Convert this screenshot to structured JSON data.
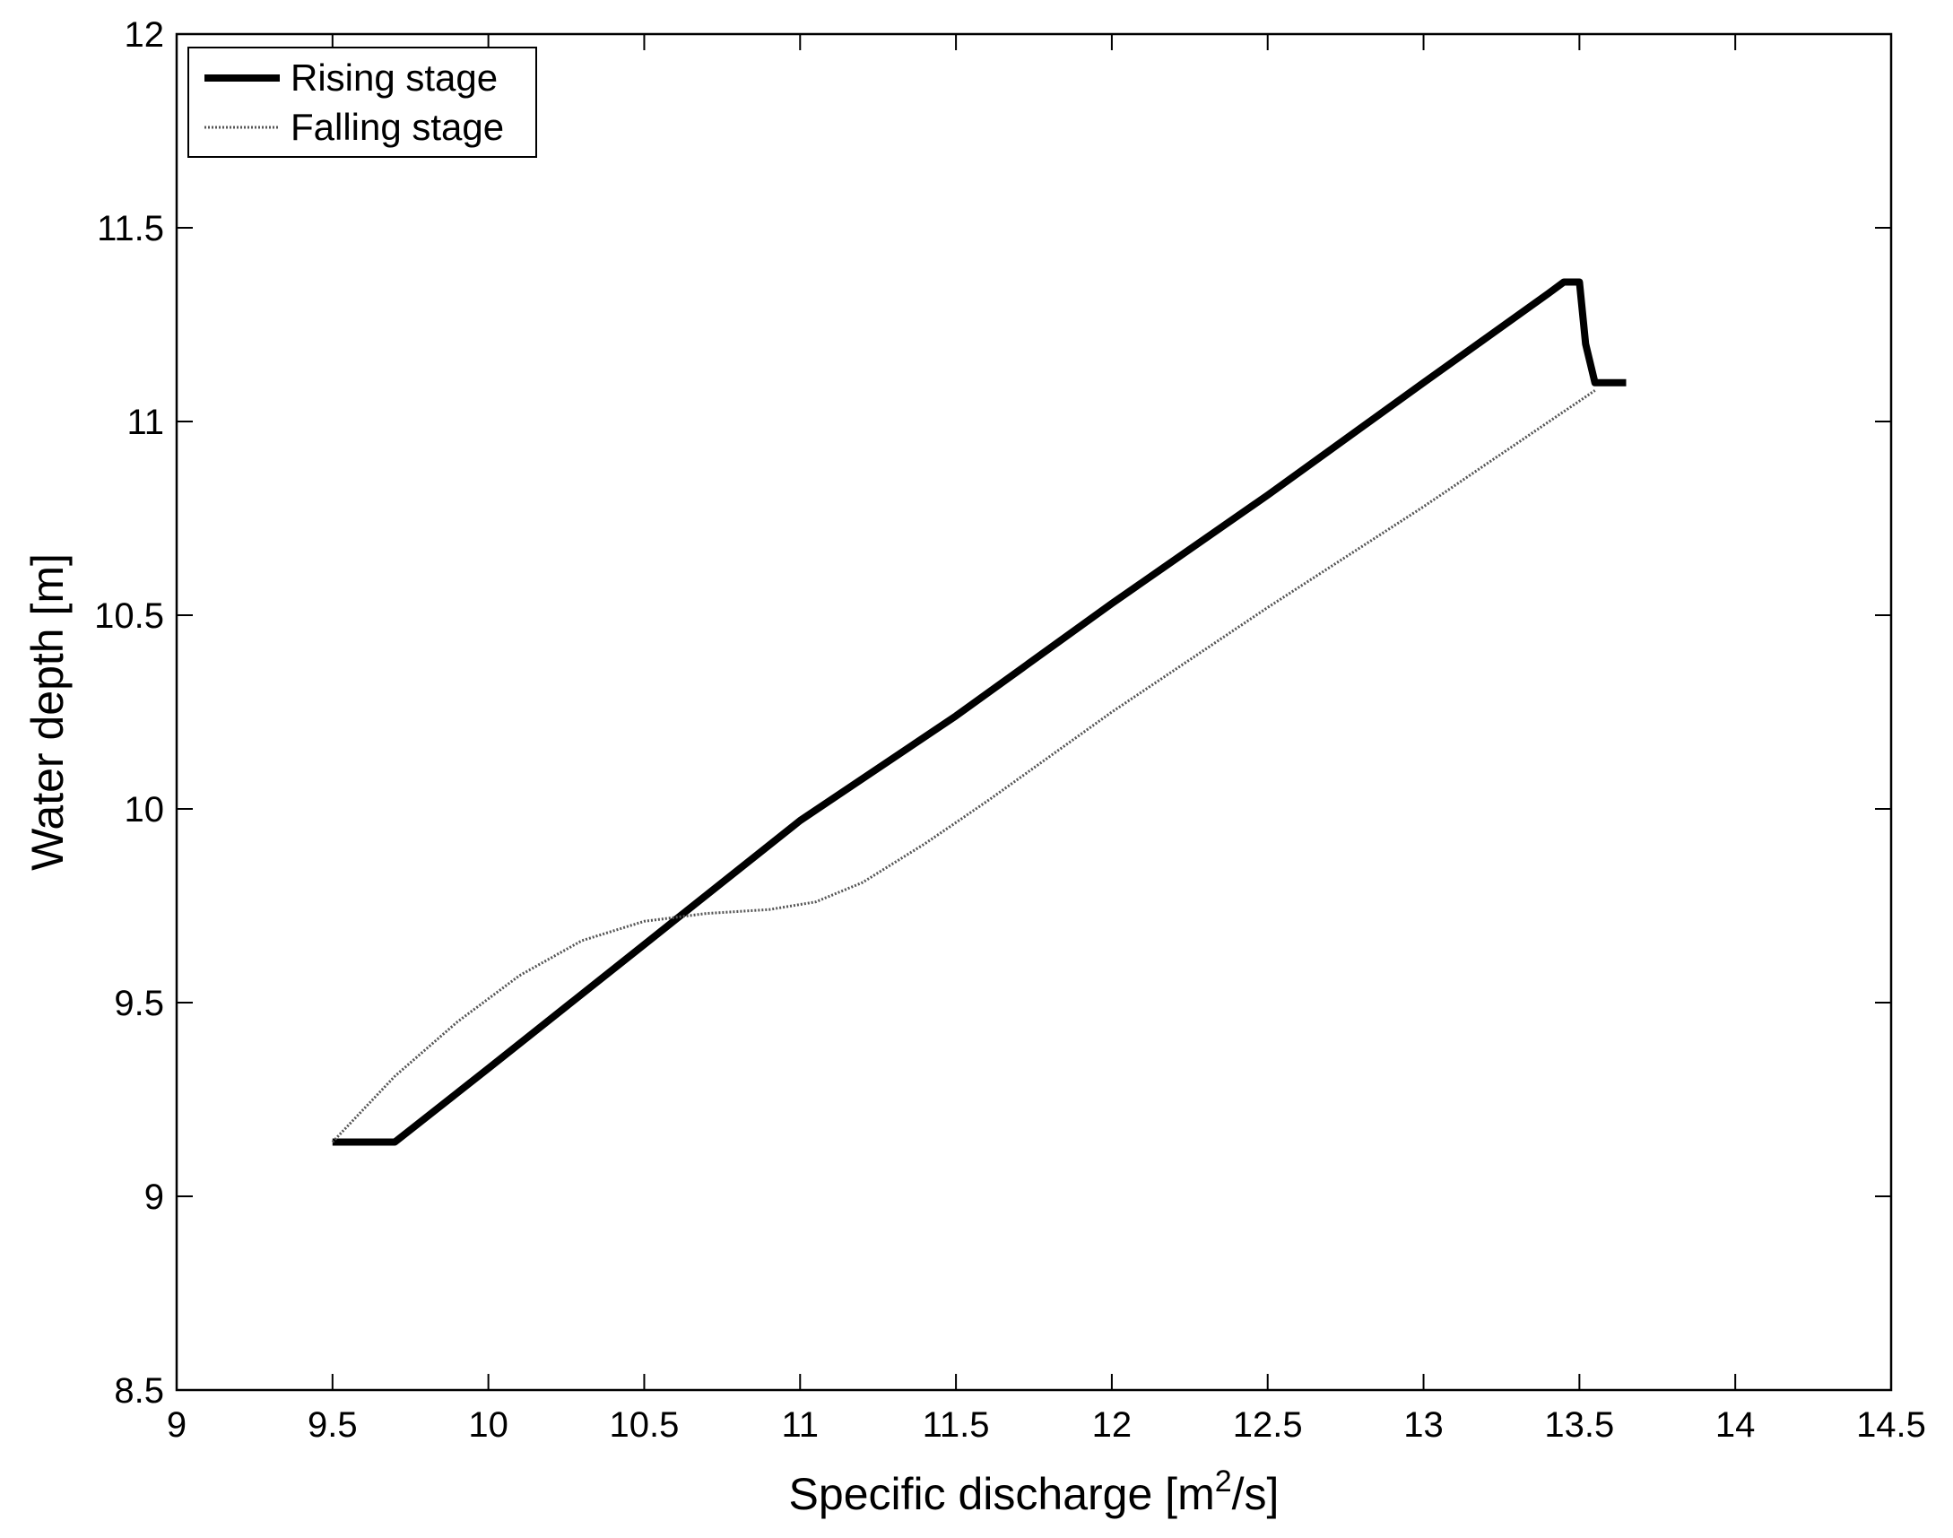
{
  "chart_data": {
    "type": "line",
    "title": "",
    "xlabel": "Specific discharge [m",
    "xlabel_sup": "2",
    "xlabel_tail": "/s]",
    "ylabel": "Water depth [m]",
    "xlim": [
      9,
      14.5
    ],
    "ylim": [
      8.5,
      12
    ],
    "x_ticks": [
      "9",
      "9.5",
      "10",
      "10.5",
      "11",
      "11.5",
      "12",
      "12.5",
      "13",
      "13.5",
      "14",
      "14.5"
    ],
    "y_ticks": [
      "8.5",
      "9",
      "9.5",
      "10",
      "10.5",
      "11",
      "11.5",
      "12"
    ],
    "grid": false,
    "legend_position": "top-left",
    "series": [
      {
        "name": "Rising stage",
        "style": "solid-thick",
        "color": "#000000",
        "points": [
          [
            9.5,
            9.14
          ],
          [
            9.7,
            9.14
          ],
          [
            10.0,
            9.33
          ],
          [
            10.5,
            9.65
          ],
          [
            11.0,
            9.97
          ],
          [
            11.5,
            10.24
          ],
          [
            12.0,
            10.53
          ],
          [
            12.5,
            10.81
          ],
          [
            13.0,
            11.1
          ],
          [
            13.4,
            11.33
          ],
          [
            13.45,
            11.36
          ],
          [
            13.5,
            11.36
          ],
          [
            13.52,
            11.2
          ],
          [
            13.55,
            11.1
          ],
          [
            13.65,
            11.1
          ]
        ]
      },
      {
        "name": "Falling stage",
        "style": "dotted-thin",
        "color": "#555555",
        "points": [
          [
            9.5,
            9.14
          ],
          [
            9.7,
            9.31
          ],
          [
            9.9,
            9.45
          ],
          [
            10.1,
            9.57
          ],
          [
            10.3,
            9.66
          ],
          [
            10.5,
            9.71
          ],
          [
            10.7,
            9.73
          ],
          [
            10.9,
            9.74
          ],
          [
            11.05,
            9.76
          ],
          [
            11.2,
            9.81
          ],
          [
            11.4,
            9.91
          ],
          [
            11.6,
            10.02
          ],
          [
            12.0,
            10.25
          ],
          [
            12.5,
            10.52
          ],
          [
            13.0,
            10.78
          ],
          [
            13.55,
            11.08
          ]
        ]
      }
    ]
  }
}
